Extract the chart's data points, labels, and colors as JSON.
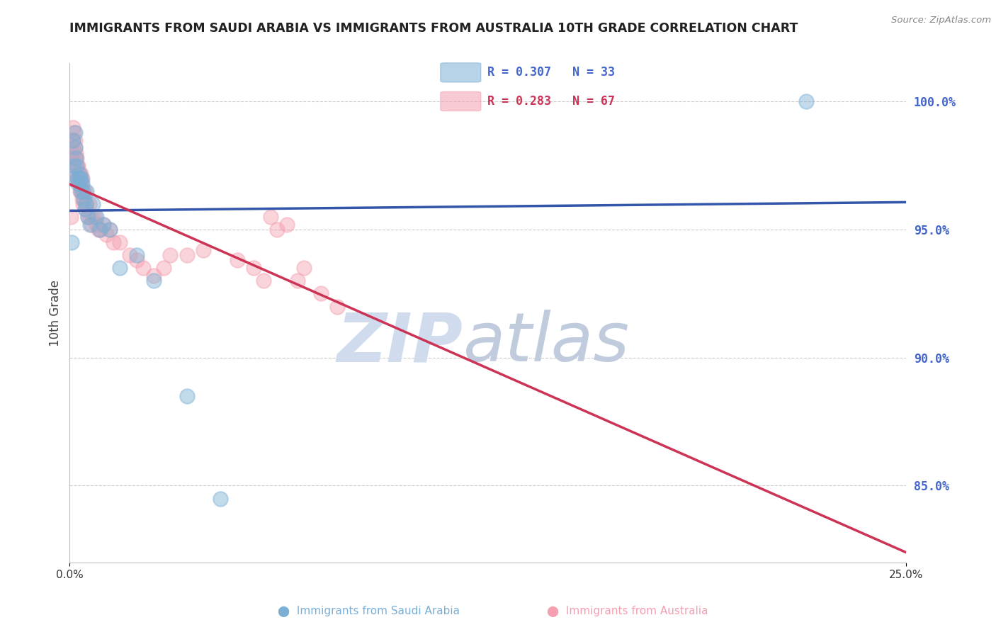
{
  "title": "IMMIGRANTS FROM SAUDI ARABIA VS IMMIGRANTS FROM AUSTRALIA 10TH GRADE CORRELATION CHART",
  "source": "Source: ZipAtlas.com",
  "ylabel": "10th Grade",
  "xlim": [
    0.0,
    25.0
  ],
  "ylim": [
    82.0,
    101.5
  ],
  "yticks_right": [
    85.0,
    90.0,
    95.0,
    100.0
  ],
  "blue_R": 0.307,
  "blue_N": 33,
  "pink_R": 0.283,
  "pink_N": 67,
  "blue_color": "#7BAFD4",
  "pink_color": "#F4A0B0",
  "blue_line_color": "#3355AA",
  "pink_line_color": "#CC3355",
  "right_axis_color": "#4466CC",
  "blue_scatter_x": [
    0.05,
    0.08,
    0.1,
    0.12,
    0.15,
    0.15,
    0.18,
    0.2,
    0.22,
    0.25,
    0.28,
    0.3,
    0.32,
    0.35,
    0.38,
    0.4,
    0.42,
    0.45,
    0.48,
    0.5,
    0.55,
    0.6,
    0.7,
    0.8,
    0.9,
    1.0,
    1.2,
    1.5,
    2.0,
    2.5,
    3.5,
    4.5,
    22.0
  ],
  "blue_scatter_y": [
    94.5,
    97.0,
    98.5,
    97.5,
    98.8,
    98.2,
    97.8,
    97.5,
    97.0,
    96.8,
    97.2,
    97.0,
    96.5,
    97.0,
    96.8,
    96.5,
    96.2,
    95.8,
    96.0,
    96.5,
    95.5,
    95.2,
    96.0,
    95.5,
    95.0,
    95.2,
    95.0,
    93.5,
    94.0,
    93.0,
    88.5,
    84.5,
    100.0
  ],
  "pink_scatter_x": [
    0.03,
    0.05,
    0.07,
    0.08,
    0.1,
    0.1,
    0.12,
    0.12,
    0.15,
    0.15,
    0.15,
    0.18,
    0.18,
    0.2,
    0.2,
    0.22,
    0.22,
    0.25,
    0.25,
    0.28,
    0.28,
    0.3,
    0.3,
    0.32,
    0.35,
    0.35,
    0.38,
    0.38,
    0.4,
    0.4,
    0.42,
    0.45,
    0.45,
    0.48,
    0.5,
    0.55,
    0.58,
    0.6,
    0.65,
    0.7,
    0.75,
    0.8,
    0.85,
    0.9,
    1.0,
    1.1,
    1.2,
    1.3,
    1.5,
    1.8,
    2.0,
    2.2,
    2.5,
    2.8,
    3.0,
    3.5,
    4.0,
    5.0,
    5.5,
    5.8,
    6.0,
    6.2,
    6.5,
    6.8,
    7.0,
    7.5,
    8.0
  ],
  "pink_scatter_y": [
    95.5,
    97.8,
    98.0,
    98.5,
    99.0,
    98.5,
    98.8,
    98.0,
    98.5,
    97.8,
    98.2,
    98.0,
    97.5,
    97.8,
    97.2,
    97.5,
    97.0,
    97.5,
    97.0,
    97.2,
    96.8,
    97.0,
    96.5,
    97.2,
    96.8,
    96.5,
    97.0,
    96.2,
    96.5,
    96.0,
    96.2,
    96.5,
    96.0,
    95.8,
    96.0,
    95.5,
    96.0,
    95.5,
    95.2,
    95.5,
    95.5,
    95.2,
    95.0,
    95.0,
    95.2,
    94.8,
    95.0,
    94.5,
    94.5,
    94.0,
    93.8,
    93.5,
    93.2,
    93.5,
    94.0,
    94.0,
    94.2,
    93.8,
    93.5,
    93.0,
    95.5,
    95.0,
    95.2,
    93.0,
    93.5,
    92.5,
    92.0
  ],
  "watermark_zip_color": "#D0DCEE",
  "watermark_atlas_color": "#C0CCDD",
  "grid_color": "#CCCCCC",
  "title_color": "#222222",
  "source_color": "#888888"
}
